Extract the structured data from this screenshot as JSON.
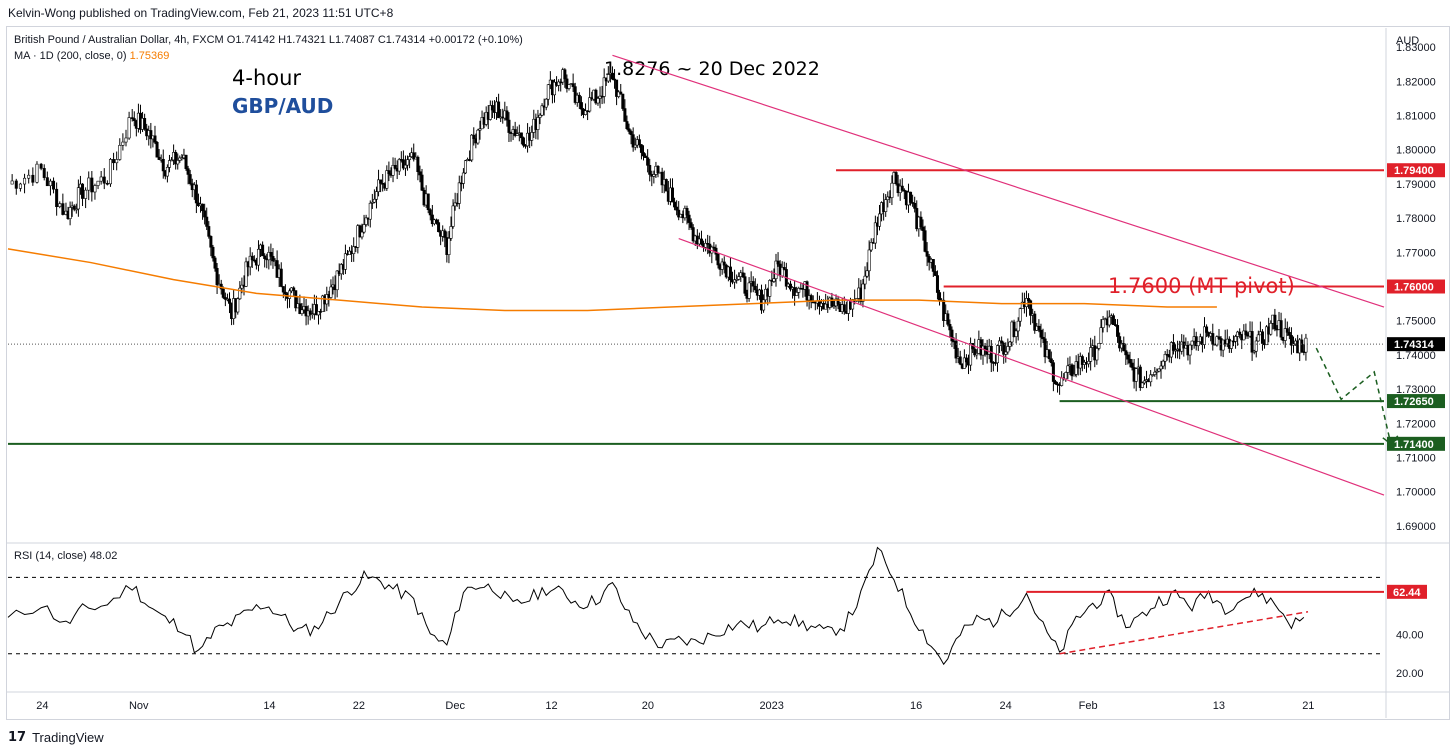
{
  "publisher_line": "Kelvin-Wong published on TradingView.com, Feb 21, 2023 11:51 UTC+8",
  "legend": {
    "symbol_line": "British Pound / Australian Dollar, 4h, FXCM  O1.74142  H1.74321  L1.74087  C1.74314  +0.00172 (+0.10%)",
    "ma_label": "MA · 1D (200, close, 0)",
    "ma_value": "1.75369",
    "rsi_label": "RSI (14, close)",
    "rsi_value": "48.02"
  },
  "annotations": {
    "timeframe": "4-hour",
    "pair": "GBP/AUD",
    "high_label": "1.8276 ~ 20 Dec 2022",
    "pivot_label": "1.7600 (MT pivot)"
  },
  "footer": {
    "brand": "TradingView",
    "logo": "17"
  },
  "colors": {
    "candle": "#000000",
    "ma": "#f57c00",
    "channel": "#e0307a",
    "resistance": "#e0202a",
    "support": "#1b5e20",
    "pair_text": "#1f4e9c"
  },
  "chart_data": [
    {
      "type": "line",
      "title": "",
      "currency": "AUD",
      "ylim": [
        1.685,
        1.835
      ],
      "y_ticks": [
        "1.83000",
        "1.82000",
        "1.81000",
        "1.80000",
        "1.79000",
        "1.78000",
        "1.77000",
        "1.76000",
        "1.75000",
        "1.74000",
        "1.73000",
        "1.72000",
        "1.71000",
        "1.70000",
        "1.69000"
      ],
      "x_tick_labels": [
        "24",
        "Nov",
        "14",
        "22",
        "Dec",
        "12",
        "20",
        "2023",
        "16",
        "24",
        "Feb",
        "13",
        "21"
      ],
      "price_tags": [
        {
          "value": "1.79400",
          "kind": "resistance"
        },
        {
          "value": "1.76000",
          "kind": "resistance"
        },
        {
          "value": "1.74314",
          "kind": "last"
        },
        {
          "value": "1.72650",
          "kind": "support"
        },
        {
          "value": "1.71400",
          "kind": "support"
        }
      ],
      "levels": {
        "resistance_1": 1.794,
        "pivot": 1.76,
        "support_1": 1.7265,
        "support_2": 1.714,
        "last": 1.74314
      },
      "series": [
        {
          "name": "",
          "points": [
            [
              0,
              1.79
            ],
            [
              4,
              1.794
            ],
            [
              7,
              1.781
            ],
            [
              9,
              1.788
            ],
            [
              12,
              1.792
            ],
            [
              15,
              1.81
            ],
            [
              17,
              1.805
            ],
            [
              19,
              1.795
            ],
            [
              21,
              1.798
            ],
            [
              23,
              1.785
            ],
            [
              25,
              1.765
            ],
            [
              27,
              1.752
            ],
            [
              29,
              1.766
            ],
            [
              31,
              1.771
            ],
            [
              33,
              1.762
            ],
            [
              35,
              1.755
            ],
            [
              37,
              1.753
            ],
            [
              39,
              1.76
            ],
            [
              41,
              1.768
            ],
            [
              43,
              1.78
            ],
            [
              45,
              1.79
            ],
            [
              47,
              1.794
            ],
            [
              49,
              1.797
            ],
            [
              51,
              1.78
            ],
            [
              53,
              1.772
            ],
            [
              55,
              1.795
            ],
            [
              57,
              1.808
            ],
            [
              59,
              1.812
            ],
            [
              61,
              1.806
            ],
            [
              63,
              1.803
            ],
            [
              65,
              1.817
            ],
            [
              67,
              1.822
            ],
            [
              69,
              1.812
            ],
            [
              71,
              1.815
            ],
            [
              73,
              1.822
            ],
            [
              75,
              1.805
            ],
            [
              77,
              1.797
            ],
            [
              79,
              1.79
            ],
            [
              81,
              1.783
            ],
            [
              83,
              1.775
            ],
            [
              85,
              1.771
            ],
            [
              87,
              1.765
            ],
            [
              89,
              1.76
            ],
            [
              91,
              1.756
            ],
            [
              93,
              1.766
            ],
            [
              95,
              1.76
            ],
            [
              97,
              1.758
            ],
            [
              99,
              1.755
            ],
            [
              101,
              1.753
            ],
            [
              103,
              1.758
            ],
            [
              105,
              1.78
            ],
            [
              107,
              1.792
            ],
            [
              109,
              1.785
            ],
            [
              111,
              1.77
            ],
            [
              113,
              1.752
            ],
            [
              115,
              1.738
            ],
            [
              117,
              1.742
            ],
            [
              119,
              1.74
            ],
            [
              121,
              1.745
            ],
            [
              123,
              1.758
            ],
            [
              125,
              1.742
            ],
            [
              127,
              1.731
            ],
            [
              129,
              1.737
            ],
            [
              131,
              1.74
            ],
            [
              133,
              1.752
            ],
            [
              135,
              1.738
            ],
            [
              137,
              1.732
            ],
            [
              139,
              1.738
            ],
            [
              141,
              1.744
            ],
            [
              143,
              1.742
            ],
            [
              145,
              1.747
            ],
            [
              147,
              1.742
            ],
            [
              149,
              1.745
            ],
            [
              151,
              1.743
            ],
            [
              153,
              1.75
            ],
            [
              155,
              1.743
            ],
            [
              157,
              1.743
            ]
          ]
        },
        {
          "name": "MA",
          "points": [
            [
              0,
              1.771
            ],
            [
              10,
              1.767
            ],
            [
              20,
              1.762
            ],
            [
              30,
              1.758
            ],
            [
              40,
              1.756
            ],
            [
              50,
              1.754
            ],
            [
              60,
              1.753
            ],
            [
              70,
              1.753
            ],
            [
              80,
              1.754
            ],
            [
              90,
              1.755
            ],
            [
              100,
              1.756
            ],
            [
              110,
              1.756
            ],
            [
              120,
              1.755
            ],
            [
              130,
              1.755
            ],
            [
              140,
              1.754
            ],
            [
              146,
              1.754
            ]
          ]
        }
      ]
    },
    {
      "type": "line",
      "title": "",
      "ylim": [
        10,
        88
      ],
      "y_ticks": [
        "20.00",
        "40.00"
      ],
      "price_tags": [
        {
          "value": "62.44",
          "kind": "resistance"
        }
      ],
      "bands": [
        70,
        30
      ],
      "series": [
        {
          "name": "",
          "points": [
            [
              0,
              48
            ],
            [
              4,
              56
            ],
            [
              7,
              45
            ],
            [
              9,
              53
            ],
            [
              12,
              56
            ],
            [
              15,
              66
            ],
            [
              17,
              55
            ],
            [
              19,
              48
            ],
            [
              21,
              44
            ],
            [
              23,
              30
            ],
            [
              25,
              42
            ],
            [
              27,
              46
            ],
            [
              29,
              52
            ],
            [
              31,
              56
            ],
            [
              33,
              50
            ],
            [
              35,
              42
            ],
            [
              37,
              43
            ],
            [
              39,
              52
            ],
            [
              41,
              62
            ],
            [
              43,
              70
            ],
            [
              45,
              68
            ],
            [
              47,
              63
            ],
            [
              49,
              58
            ],
            [
              51,
              40
            ],
            [
              53,
              34
            ],
            [
              55,
              63
            ],
            [
              57,
              66
            ],
            [
              59,
              64
            ],
            [
              61,
              55
            ],
            [
              63,
              59
            ],
            [
              65,
              64
            ],
            [
              67,
              62
            ],
            [
              69,
              56
            ],
            [
              71,
              58
            ],
            [
              73,
              66
            ],
            [
              75,
              50
            ],
            [
              77,
              40
            ],
            [
              79,
              34
            ],
            [
              81,
              37
            ],
            [
              83,
              36
            ],
            [
              85,
              40
            ],
            [
              87,
              44
            ],
            [
              89,
              46
            ],
            [
              91,
              43
            ],
            [
              93,
              50
            ],
            [
              95,
              47
            ],
            [
              97,
              44
            ],
            [
              99,
              41
            ],
            [
              101,
              45
            ],
            [
              103,
              60
            ],
            [
              105,
              84
            ],
            [
              107,
              70
            ],
            [
              109,
              52
            ],
            [
              111,
              38
            ],
            [
              113,
              25
            ],
            [
              115,
              40
            ],
            [
              117,
              48
            ],
            [
              119,
              47
            ],
            [
              121,
              53
            ],
            [
              123,
              62
            ],
            [
              125,
              44
            ],
            [
              127,
              30
            ],
            [
              129,
              48
            ],
            [
              131,
              56
            ],
            [
              133,
              60
            ],
            [
              135,
              45
            ],
            [
              137,
              50
            ],
            [
              139,
              58
            ],
            [
              141,
              61
            ],
            [
              143,
              55
            ],
            [
              145,
              62
            ],
            [
              147,
              54
            ],
            [
              149,
              59
            ],
            [
              151,
              62
            ],
            [
              153,
              56
            ],
            [
              155,
              46
            ],
            [
              157,
              48
            ]
          ]
        }
      ]
    }
  ]
}
